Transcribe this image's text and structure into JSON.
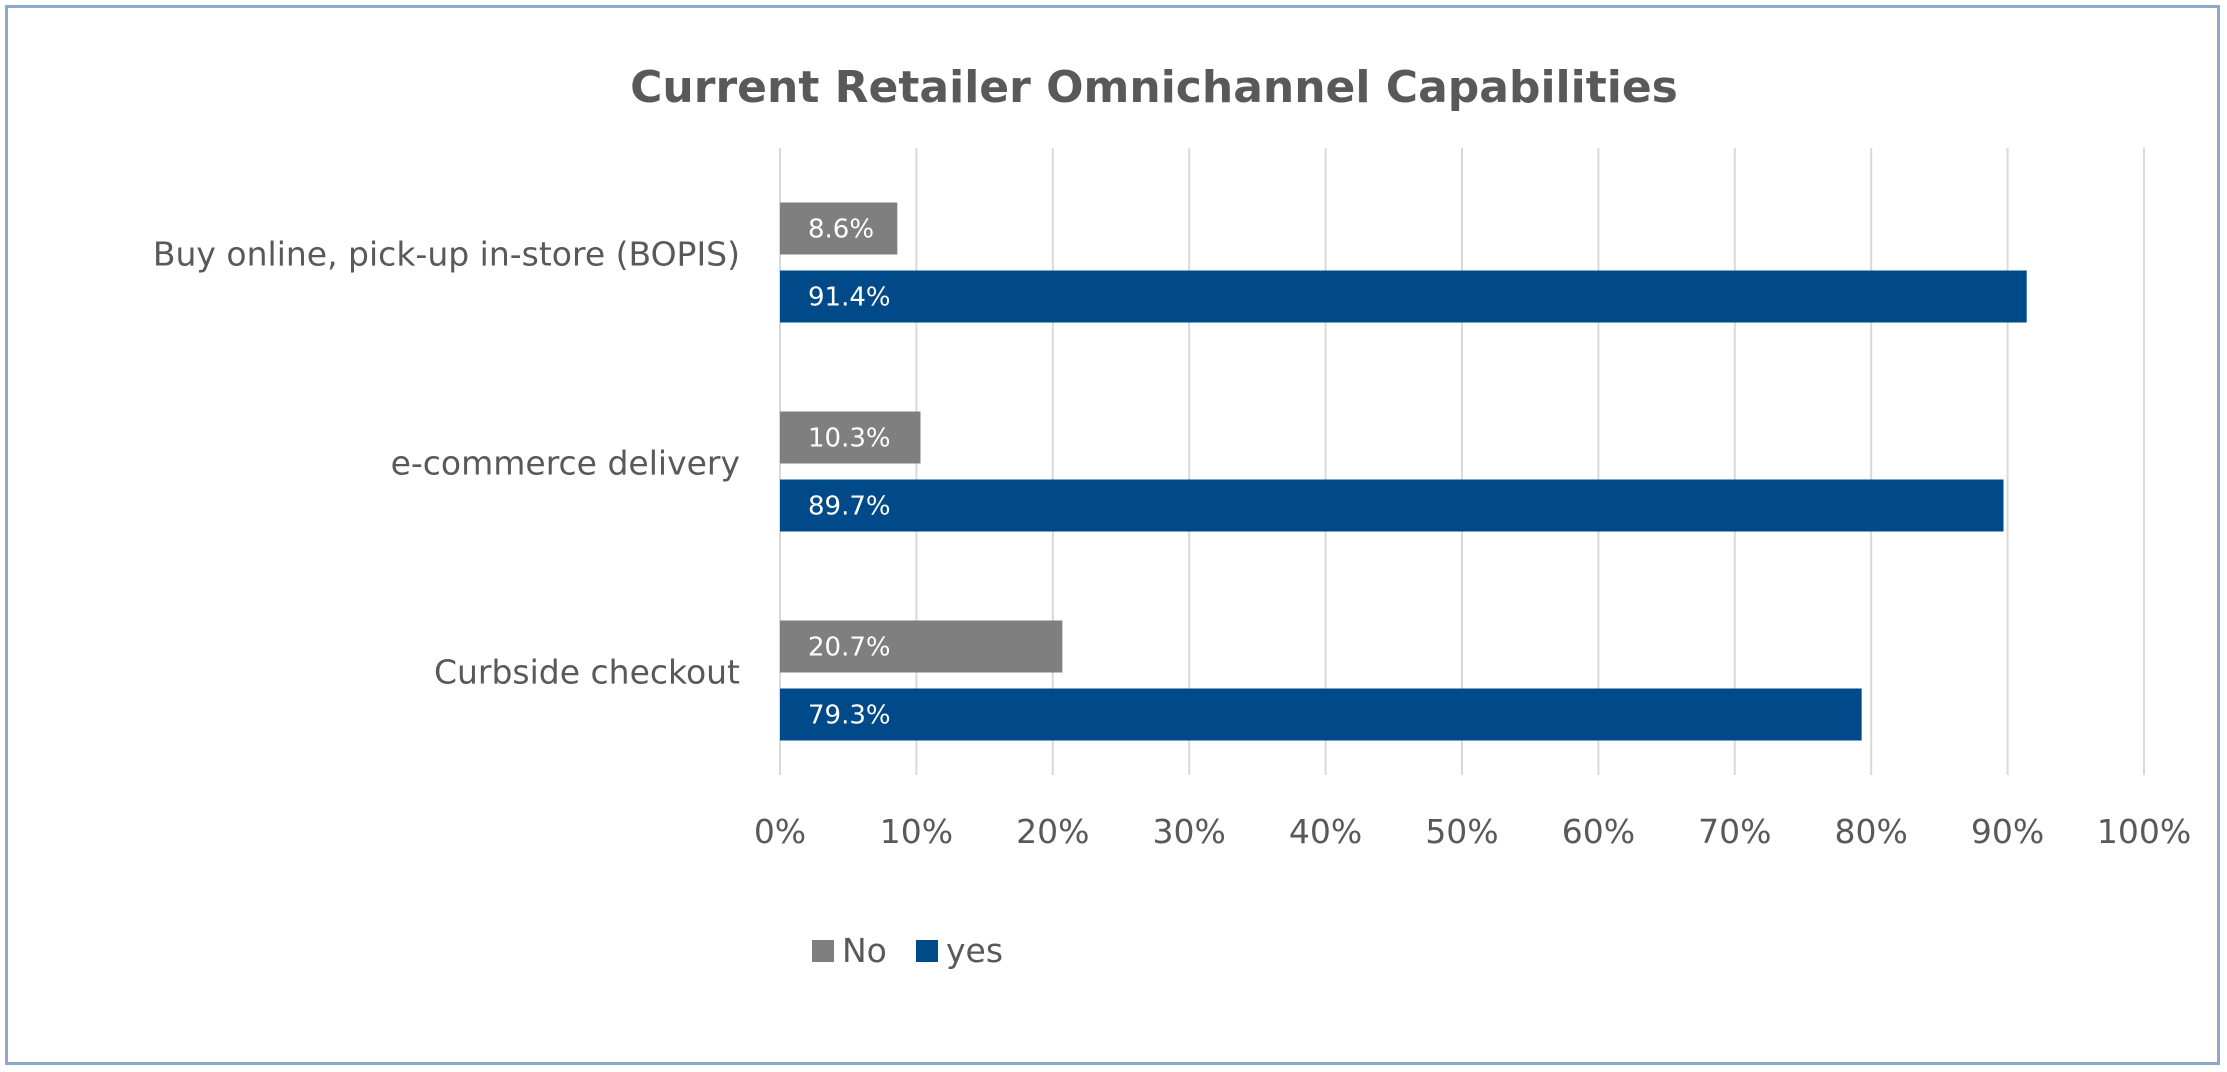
{
  "chart_data": {
    "type": "bar",
    "orientation": "horizontal",
    "title": "Current Retailer Omnichannel Capabilities",
    "categories": [
      "Buy online, pick-up in-store (BOPIS)",
      "e-commerce delivery",
      "Curbside checkout"
    ],
    "series": [
      {
        "name": "No",
        "color": "#7F7F7F",
        "values": [
          8.6,
          10.3,
          20.7
        ],
        "labels": [
          "8.6%",
          "10.3%",
          "20.7%"
        ]
      },
      {
        "name": "yes",
        "color": "#004A89",
        "values": [
          91.4,
          89.7,
          79.3
        ],
        "labels": [
          "91.4%",
          "89.7%",
          "79.3%"
        ]
      }
    ],
    "x_ticks": [
      "0%",
      "10%",
      "20%",
      "30%",
      "40%",
      "50%",
      "60%",
      "70%",
      "80%",
      "90%",
      "100%"
    ],
    "xlim": [
      0,
      100
    ],
    "grid": "vertical",
    "legend_position": "bottom-left"
  }
}
